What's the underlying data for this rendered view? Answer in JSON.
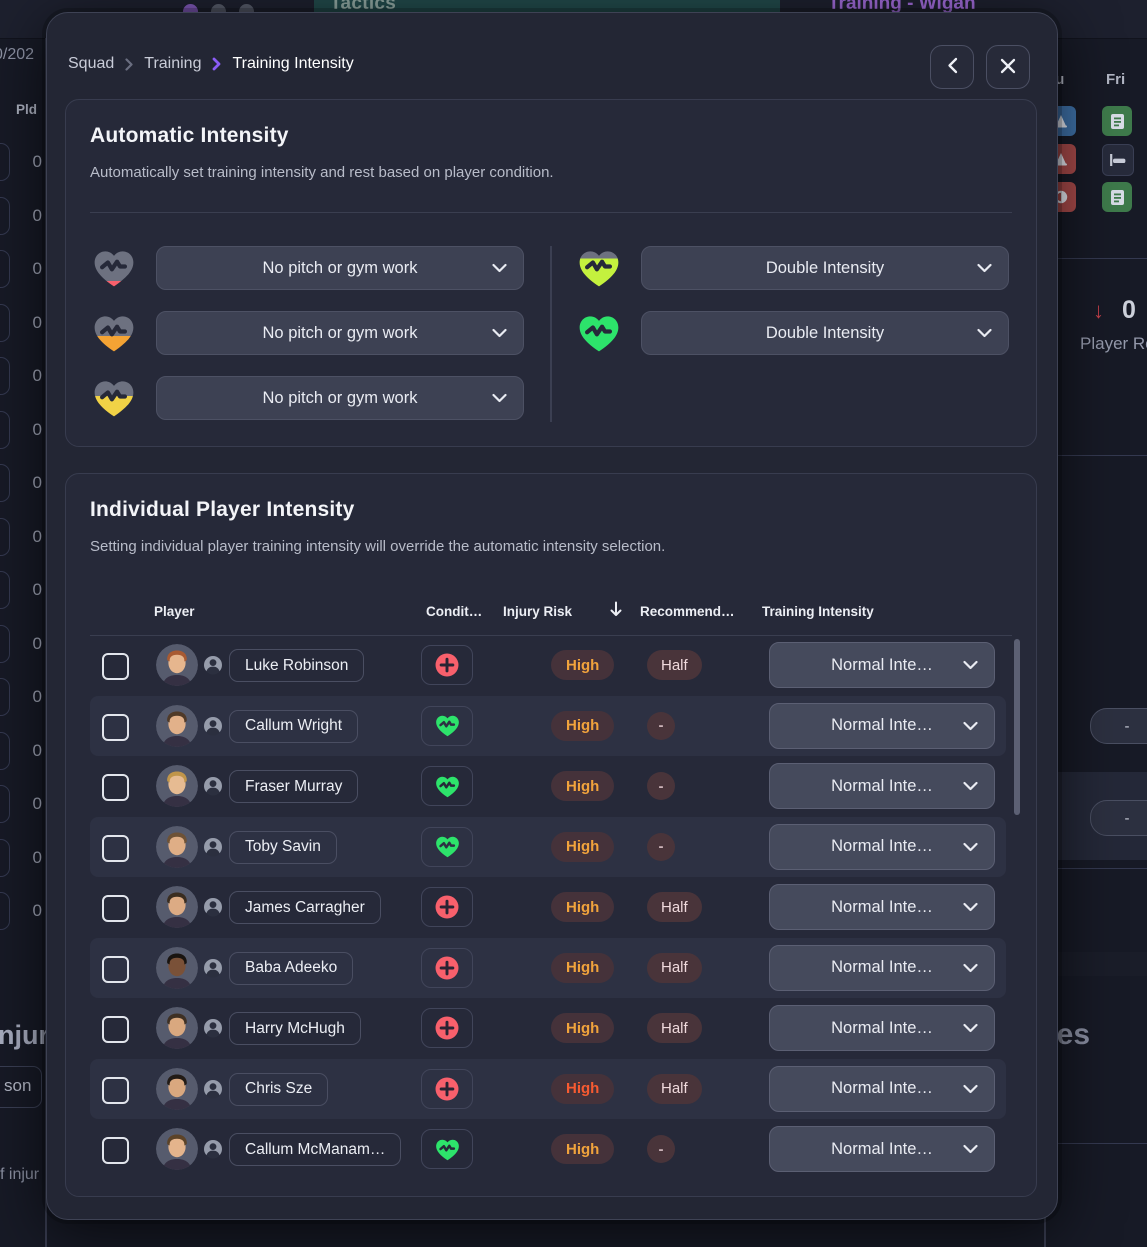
{
  "background": {
    "topbar": {
      "tab_label": "Tactics",
      "window_title": "Training - Wigan"
    },
    "left_panel": {
      "date_fragment": "0/202",
      "column_header": "Pld",
      "zeros": [
        "0",
        "0",
        "0",
        "0",
        "0",
        "0",
        "0",
        "0",
        "0",
        "0",
        "0",
        "0",
        "0",
        "0",
        "0"
      ],
      "injuries_fragment": "njur",
      "name_fragment": "son",
      "note_fragment": "f injur"
    },
    "right_panel": {
      "day_thu_fragment": "hu",
      "day_fri": "Fri",
      "drop_arrow": "↓",
      "drop_count": "0",
      "drop_label_fragment": "Player Re",
      "pill_value": "-",
      "bottom_fragment": "ses"
    }
  },
  "colors": {
    "accent_purple": "#8b5cf6",
    "green": "#2de36b",
    "lime": "#c4f13e",
    "yellow": "#f1d246",
    "orange": "#f4a334",
    "red": "#f8606c",
    "heart_gray": "#6d7180",
    "risk_amber": "#f1a33c",
    "risk_red_orange": "#f75b31",
    "card_bg": "#262939",
    "row_alt_bg": "#2d3143"
  },
  "modal": {
    "breadcrumb": {
      "items": [
        "Squad",
        "Training",
        "Training Intensity"
      ]
    },
    "automatic": {
      "title": "Automatic Intensity",
      "subtitle": "Automatically set training intensity and rest based on player condition.",
      "mappings": [
        {
          "condition_level": "very-low",
          "fill_pct": 16,
          "fill_color_key": "red",
          "label": "No pitch or gym work"
        },
        {
          "condition_level": "low",
          "fill_pct": 44,
          "fill_color_key": "orange",
          "label": "No pitch or gym work"
        },
        {
          "condition_level": "medium",
          "fill_pct": 58,
          "fill_color_key": "yellow",
          "label": "No pitch or gym work"
        },
        {
          "condition_level": "high",
          "fill_pct": 80,
          "fill_color_key": "lime",
          "label": "Double Intensity"
        },
        {
          "condition_level": "full",
          "fill_pct": 100,
          "fill_color_key": "green",
          "label": "Double Intensity"
        }
      ]
    },
    "individual": {
      "title": "Individual Player Intensity",
      "subtitle": "Setting individual player training intensity will override the automatic intensity selection.",
      "columns": [
        "Player",
        "Condit…",
        "Injury Risk",
        "Recommend…",
        "Training Intensity"
      ],
      "players": [
        {
          "name": "Luke Robinson",
          "condition": "injured",
          "injury_risk": "High",
          "risk_color": "#f1a33c",
          "recommendation": "Half",
          "intensity": "Normal Inte…",
          "avatar": {
            "hair": "#a85a32",
            "skin": "#e6b68e"
          }
        },
        {
          "name": "Callum Wright",
          "condition": "fit",
          "injury_risk": "High",
          "risk_color": "#f1a33c",
          "recommendation": "-",
          "intensity": "Normal Inte…",
          "avatar": {
            "hair": "#503a28",
            "skin": "#e2b18a"
          }
        },
        {
          "name": "Fraser Murray",
          "condition": "fit",
          "injury_risk": "High",
          "risk_color": "#f1a33c",
          "recommendation": "-",
          "intensity": "Normal Inte…",
          "avatar": {
            "hair": "#c0954a",
            "skin": "#e6bb92"
          }
        },
        {
          "name": "Toby Savin",
          "condition": "fit",
          "injury_risk": "High",
          "risk_color": "#f1a33c",
          "recommendation": "-",
          "intensity": "Normal Inte…",
          "avatar": {
            "hair": "#6e5236",
            "skin": "#dfae86"
          }
        },
        {
          "name": "James Carragher",
          "condition": "injured",
          "injury_risk": "High",
          "risk_color": "#f1a33c",
          "recommendation": "Half",
          "intensity": "Normal Inte…",
          "avatar": {
            "hair": "#3a2d20",
            "skin": "#dcab84"
          }
        },
        {
          "name": "Baba Adeeko",
          "condition": "injured",
          "injury_risk": "High",
          "risk_color": "#f1a33c",
          "recommendation": "Half",
          "intensity": "Normal Inte…",
          "avatar": {
            "hair": "#191410",
            "skin": "#7a5138"
          }
        },
        {
          "name": "Harry McHugh",
          "condition": "injured",
          "injury_risk": "High",
          "risk_color": "#f1a33c",
          "recommendation": "Half",
          "intensity": "Normal Inte…",
          "avatar": {
            "hair": "#3e3024",
            "skin": "#d9a87f"
          }
        },
        {
          "name": "Chris Sze",
          "condition": "injured",
          "injury_risk": "High",
          "risk_color": "#f75b31",
          "recommendation": "Half",
          "intensity": "Normal Inte…",
          "avatar": {
            "hair": "#221b16",
            "skin": "#d9a87f"
          }
        },
        {
          "name": "Callum McManam…",
          "condition": "fit",
          "injury_risk": "High",
          "risk_color": "#f1a33c",
          "recommendation": "-",
          "intensity": "Normal Inte…",
          "avatar": {
            "hair": "#5c4328",
            "skin": "#e4b48c"
          }
        }
      ]
    }
  }
}
